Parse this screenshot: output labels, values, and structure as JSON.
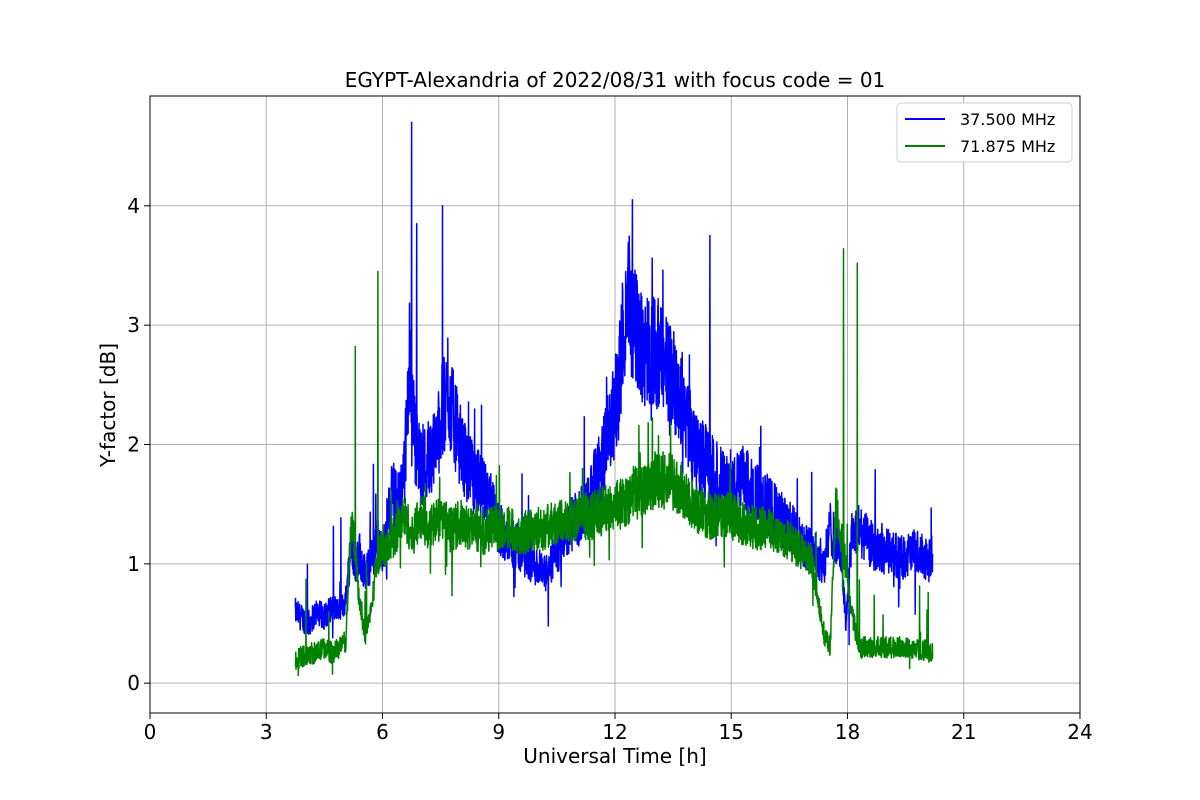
{
  "chart_data": {
    "type": "line",
    "title": "EGYPT-Alexandria of 2022/08/31 with focus code = 01",
    "xlabel": "Universal Time [h]",
    "ylabel": "Y-factor [dB]",
    "xlim": [
      0,
      24
    ],
    "ylim": [
      -0.25,
      4.92
    ],
    "xticks": [
      0,
      3,
      6,
      9,
      12,
      15,
      18,
      21,
      24
    ],
    "yticks": [
      0,
      1,
      2,
      3,
      4
    ],
    "grid": true,
    "legend_position": "top-right",
    "colors": {
      "37.500 MHz": "#0000ff",
      "71.875 MHz": "#008000"
    },
    "series": [
      {
        "name": "37.500 MHz",
        "color": "#0000ff",
        "x": [
          3.75,
          3.9,
          4.1,
          4.3,
          4.5,
          4.7,
          4.9,
          5.05,
          5.2,
          5.3,
          5.4,
          5.55,
          5.7,
          5.85,
          6.0,
          6.1,
          6.25,
          6.4,
          6.55,
          6.7,
          6.75,
          6.85,
          7.0,
          7.2,
          7.4,
          7.55,
          7.7,
          7.85,
          8.0,
          8.2,
          8.4,
          8.6,
          8.8,
          9.0,
          9.3,
          9.6,
          9.9,
          10.2,
          10.5,
          10.8,
          11.1,
          11.4,
          11.7,
          12.0,
          12.2,
          12.35,
          12.45,
          12.6,
          12.8,
          13.0,
          13.2,
          13.4,
          13.6,
          13.8,
          14.0,
          14.2,
          14.45,
          14.7,
          15.0,
          15.3,
          15.6,
          15.9,
          16.2,
          16.5,
          16.8,
          17.1,
          17.4,
          17.55,
          17.7,
          17.85,
          17.95,
          18.1,
          18.3,
          18.5,
          18.8,
          19.1,
          19.4,
          19.7,
          20.0,
          20.2
        ],
        "values": [
          0.6,
          0.55,
          0.5,
          0.6,
          0.55,
          0.65,
          0.6,
          0.7,
          1.2,
          1.0,
          1.1,
          0.9,
          1.0,
          1.2,
          1.1,
          1.3,
          1.6,
          1.5,
          1.7,
          2.6,
          2.5,
          2.0,
          1.8,
          1.9,
          2.0,
          2.3,
          2.4,
          2.2,
          2.0,
          1.8,
          1.7,
          1.6,
          1.5,
          1.3,
          1.2,
          1.1,
          1.0,
          0.9,
          1.1,
          1.3,
          1.4,
          1.6,
          1.9,
          2.3,
          2.8,
          3.3,
          3.0,
          2.9,
          2.8,
          2.8,
          2.7,
          2.6,
          2.5,
          2.3,
          2.0,
          1.9,
          1.8,
          1.7,
          1.6,
          1.7,
          1.6,
          1.5,
          1.4,
          1.3,
          1.2,
          1.1,
          1.0,
          1.3,
          1.2,
          1.1,
          0.5,
          1.2,
          1.3,
          1.2,
          1.1,
          1.1,
          1.05,
          1.1,
          1.05,
          1.0
        ]
      },
      {
        "name": "71.875 MHz",
        "color": "#008000",
        "x": [
          3.75,
          3.9,
          4.1,
          4.3,
          4.5,
          4.7,
          4.9,
          5.05,
          5.2,
          5.3,
          5.4,
          5.55,
          5.7,
          5.85,
          6.0,
          6.1,
          6.25,
          6.4,
          6.55,
          6.7,
          6.75,
          6.85,
          7.0,
          7.2,
          7.4,
          7.55,
          7.7,
          7.85,
          8.0,
          8.2,
          8.4,
          8.6,
          8.8,
          9.0,
          9.3,
          9.6,
          9.9,
          10.2,
          10.5,
          10.8,
          11.1,
          11.4,
          11.7,
          12.0,
          12.2,
          12.35,
          12.45,
          12.6,
          12.8,
          13.0,
          13.2,
          13.4,
          13.6,
          13.8,
          14.0,
          14.2,
          14.45,
          14.7,
          15.0,
          15.3,
          15.6,
          15.9,
          16.2,
          16.5,
          16.8,
          17.1,
          17.4,
          17.55,
          17.7,
          17.85,
          17.95,
          18.1,
          18.3,
          18.5,
          18.8,
          19.1,
          19.4,
          19.7,
          20.0,
          20.2
        ],
        "values": [
          0.2,
          0.22,
          0.25,
          0.25,
          0.3,
          0.25,
          0.3,
          0.35,
          1.4,
          1.1,
          0.7,
          0.4,
          0.6,
          1.0,
          1.2,
          1.1,
          1.2,
          1.3,
          1.4,
          1.3,
          1.2,
          1.3,
          1.4,
          1.3,
          1.35,
          1.4,
          1.3,
          1.3,
          1.35,
          1.3,
          1.3,
          1.25,
          1.3,
          1.3,
          1.3,
          1.25,
          1.3,
          1.3,
          1.35,
          1.35,
          1.4,
          1.4,
          1.45,
          1.5,
          1.5,
          1.55,
          1.6,
          1.6,
          1.65,
          1.7,
          1.7,
          1.7,
          1.65,
          1.6,
          1.5,
          1.45,
          1.4,
          1.4,
          1.4,
          1.35,
          1.3,
          1.3,
          1.25,
          1.2,
          1.1,
          1.0,
          0.4,
          0.3,
          1.5,
          1.2,
          1.0,
          0.6,
          0.3,
          0.3,
          0.3,
          0.3,
          0.3,
          0.28,
          0.28,
          0.25
        ]
      }
    ],
    "spikes": [
      {
        "series": "37.500 MHz",
        "x": 6.75,
        "y": 4.7
      },
      {
        "series": "37.500 MHz",
        "x": 6.88,
        "y": 3.85
      },
      {
        "series": "37.500 MHz",
        "x": 7.55,
        "y": 4.0
      },
      {
        "series": "37.500 MHz",
        "x": 12.45,
        "y": 4.05
      },
      {
        "series": "37.500 MHz",
        "x": 14.45,
        "y": 3.75
      },
      {
        "series": "71.875 MHz",
        "x": 5.88,
        "y": 3.45
      },
      {
        "series": "71.875 MHz",
        "x": 5.3,
        "y": 2.82
      },
      {
        "series": "71.875 MHz",
        "x": 17.9,
        "y": 3.64
      },
      {
        "series": "71.875 MHz",
        "x": 18.25,
        "y": 3.52
      }
    ]
  }
}
